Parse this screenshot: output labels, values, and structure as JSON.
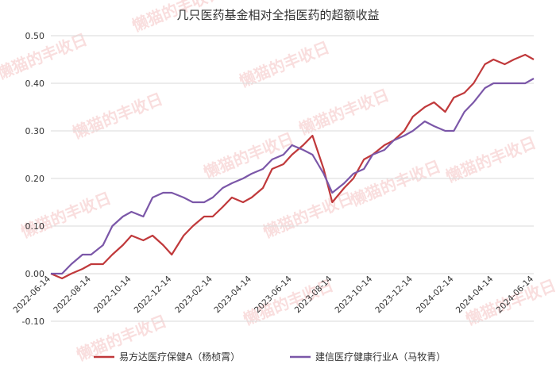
{
  "chart_data": {
    "type": "line",
    "title": "几只医药基金相对全指医药的超额收益",
    "xlabel": "",
    "ylabel": "",
    "x_tick_labels": [
      "2022-06-14",
      "2022-08-14",
      "2022-10-14",
      "2022-12-14",
      "2023-02-14",
      "2023-04-14",
      "2023-06-14",
      "2023-08-14",
      "2023-10-14",
      "2023-12-14",
      "2024-02-14",
      "2024-04-14",
      "2024-06-14"
    ],
    "y_tick_labels": [
      "-0.10",
      "0.00",
      "0.10",
      "0.20",
      "0.30",
      "0.40",
      "0.50"
    ],
    "ylim": [
      -0.1,
      0.5
    ],
    "grid": "horizontal",
    "legend_position": "bottom",
    "watermark": "懒猫的丰收日",
    "x": [
      "2022-06-14",
      "2022-07-01",
      "2022-07-15",
      "2022-08-01",
      "2022-08-14",
      "2022-09-01",
      "2022-09-15",
      "2022-10-01",
      "2022-10-14",
      "2022-11-01",
      "2022-11-15",
      "2022-12-01",
      "2022-12-14",
      "2023-01-01",
      "2023-01-15",
      "2023-02-01",
      "2023-02-14",
      "2023-03-01",
      "2023-03-15",
      "2023-04-01",
      "2023-04-14",
      "2023-05-01",
      "2023-05-15",
      "2023-06-01",
      "2023-06-14",
      "2023-07-01",
      "2023-07-15",
      "2023-08-01",
      "2023-08-14",
      "2023-09-01",
      "2023-09-15",
      "2023-10-01",
      "2023-10-14",
      "2023-11-01",
      "2023-11-15",
      "2023-12-01",
      "2023-12-14",
      "2024-01-01",
      "2024-01-15",
      "2024-02-01",
      "2024-02-14",
      "2024-03-01",
      "2024-03-15",
      "2024-04-01",
      "2024-04-14",
      "2024-05-01",
      "2024-05-15",
      "2024-06-01",
      "2024-06-14"
    ],
    "series": [
      {
        "name": "易方达医疗保健A（杨桢霄）",
        "color": "#c0393b",
        "values": [
          0.0,
          -0.01,
          0.0,
          0.01,
          0.02,
          0.02,
          0.04,
          0.06,
          0.08,
          0.07,
          0.08,
          0.06,
          0.04,
          0.08,
          0.1,
          0.12,
          0.12,
          0.14,
          0.16,
          0.15,
          0.16,
          0.18,
          0.22,
          0.23,
          0.25,
          0.27,
          0.29,
          0.22,
          0.15,
          0.18,
          0.2,
          0.24,
          0.25,
          0.27,
          0.28,
          0.3,
          0.33,
          0.35,
          0.36,
          0.34,
          0.37,
          0.38,
          0.4,
          0.44,
          0.45,
          0.44,
          0.45,
          0.46,
          0.45
        ]
      },
      {
        "name": "建信医疗健康行业A（马牧青）",
        "color": "#7b57a8",
        "values": [
          0.0,
          0.0,
          0.02,
          0.04,
          0.04,
          0.06,
          0.1,
          0.12,
          0.13,
          0.12,
          0.16,
          0.17,
          0.17,
          0.16,
          0.15,
          0.15,
          0.16,
          0.18,
          0.19,
          0.2,
          0.21,
          0.22,
          0.24,
          0.25,
          0.27,
          0.26,
          0.25,
          0.21,
          0.17,
          0.19,
          0.21,
          0.22,
          0.25,
          0.26,
          0.28,
          0.29,
          0.3,
          0.32,
          0.31,
          0.3,
          0.3,
          0.34,
          0.36,
          0.39,
          0.4,
          0.4,
          0.4,
          0.4,
          0.41
        ]
      }
    ]
  }
}
